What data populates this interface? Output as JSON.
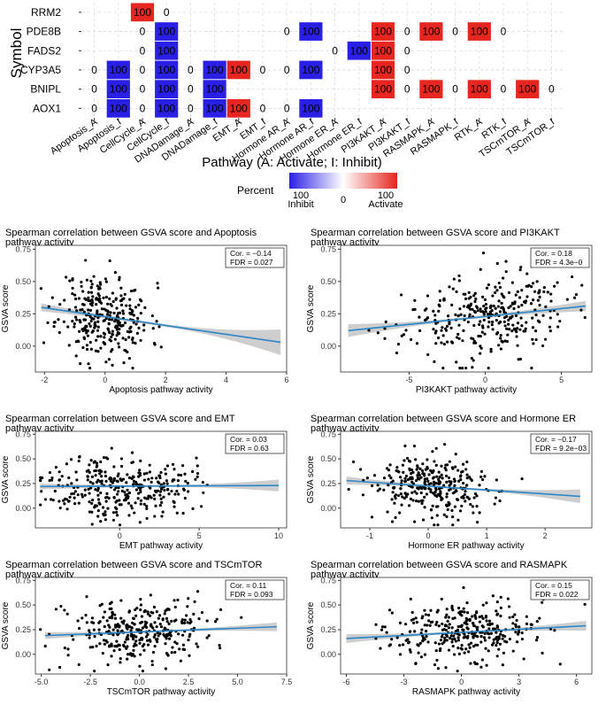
{
  "heatmap": {
    "y_title": "Symbol",
    "x_title": "Pathway (A: Activate; I: Inhibit)",
    "rows": [
      "RRM2",
      "PDE8B",
      "FADS2",
      "CYP3A5",
      "BNIPL",
      "AOX1"
    ],
    "columns": [
      "Apoptosis_A",
      "Apoptosis_I",
      "CellCycle_A",
      "CellCycle_I",
      "DNADamage_A",
      "DNADamage_I",
      "EMT_A",
      "EMT_I",
      "Hormone AR_A",
      "Hormone AR_I",
      "Hormone ER_A",
      "Hormone ER_I",
      "PI3KAKT_A",
      "PI3KAKT_I",
      "RASMAPK_A",
      "RASMAPK_I",
      "RTK_A",
      "RTK_I",
      "TSCmTOR_A",
      "TSCmTOR_I"
    ],
    "values": [
      [
        null,
        null,
        null,
        null,
        null,
        null,
        null,
        null,
        null,
        null,
        null,
        null,
        null,
        null,
        null,
        null,
        null,
        null,
        null,
        null
      ],
      [
        null,
        null,
        null,
        null,
        null,
        null,
        null,
        null,
        null,
        null,
        null,
        null,
        null,
        null,
        null,
        null,
        null,
        null,
        null,
        null
      ],
      [
        null,
        null,
        null,
        null,
        null,
        null,
        null,
        null,
        null,
        null,
        null,
        null,
        null,
        null,
        null,
        null,
        null,
        null,
        null,
        null
      ],
      [
        null,
        null,
        null,
        null,
        null,
        null,
        null,
        null,
        null,
        null,
        null,
        null,
        null,
        null,
        null,
        null,
        null,
        null,
        null,
        null
      ],
      [
        null,
        null,
        null,
        null,
        null,
        null,
        null,
        null,
        null,
        null,
        null,
        null,
        null,
        null,
        null,
        null,
        null,
        null,
        null,
        null
      ],
      [
        null,
        null,
        null,
        null,
        null,
        null,
        null,
        null,
        null,
        null,
        null,
        null,
        null,
        null,
        null,
        null,
        null,
        null,
        null,
        null
      ]
    ],
    "cells": [
      [
        null,
        null,
        "100",
        "0",
        null,
        null,
        null,
        null,
        null,
        null,
        null,
        null,
        null,
        null,
        null,
        null,
        null,
        null,
        null,
        null
      ],
      [
        null,
        null,
        "0",
        "100",
        null,
        null,
        null,
        null,
        "0",
        "100",
        null,
        null,
        "100",
        "0",
        "100",
        "0",
        "100",
        "0",
        null,
        null
      ],
      [
        null,
        null,
        "0",
        "100",
        null,
        null,
        null,
        null,
        null,
        null,
        "0",
        "100",
        "100",
        "0",
        null,
        null,
        null,
        null,
        null,
        null
      ],
      [
        "0",
        "100",
        "0",
        "100",
        "0",
        "100",
        "100",
        "0",
        "0",
        "100",
        null,
        null,
        "100",
        "0",
        null,
        null,
        null,
        null,
        null,
        null
      ],
      [
        "0",
        "100",
        "0",
        "100",
        "0",
        "100",
        null,
        null,
        null,
        null,
        null,
        null,
        "100",
        "0",
        "100",
        "0",
        "100",
        "0",
        "100",
        "0"
      ],
      [
        "0",
        "100",
        "0",
        "100",
        "0",
        "100",
        "100",
        "0",
        "0",
        "100",
        null,
        null,
        null,
        null,
        null,
        null,
        null,
        null,
        null,
        null
      ]
    ],
    "legend": {
      "title": "Percent",
      "min_label": "100",
      "min_sub": "Inhibit",
      "mid_label": "0",
      "max_label": "100",
      "max_sub": "Activate"
    },
    "colors": {
      "inhibit": "#2a1fe6",
      "neutral": "#ffffff",
      "activate": "#e6261f"
    }
  },
  "panels": [
    {
      "title_line1": "Spearman correlation between GSVA score and Apoptosis",
      "title_line2": "pathway activity",
      "xlabel": "Apoptosis pathway activity",
      "ylabel": "GSVA score",
      "cor_label": "Cor. = −0.14",
      "fdr_label": "FDR = 0.027",
      "xlim": [
        -2.3,
        6.0
      ],
      "ylim": [
        -0.2,
        0.78
      ],
      "xticks": [
        -2,
        0,
        2,
        4,
        6
      ],
      "yticks": [
        0.0,
        0.25,
        0.5,
        0.75
      ],
      "fit": [
        [
          -2.1,
          0.3
        ],
        [
          5.8,
          0.03
        ]
      ],
      "band": [
        0.03,
        0.01,
        0.1
      ],
      "point_seed": 11,
      "point_n": 300,
      "point_xmean": 0.0,
      "point_xsd": 0.75,
      "point_slope": -0.035,
      "point_intercept": 0.23
    },
    {
      "title_line1": "Spearman correlation between GSVA score and PI3KAKT",
      "title_line2": "pathway activity",
      "xlabel": "PI3KAKT pathway activity",
      "ylabel": "GSVA score",
      "cor_label": "Cor. = 0.18",
      "fdr_label": "FDR = 4.3e−0",
      "xlim": [
        -9.5,
        7.0
      ],
      "ylim": [
        -0.2,
        0.78
      ],
      "xticks": [
        -5,
        0,
        5
      ],
      "yticks": [
        0.0,
        0.25,
        0.5,
        0.75
      ],
      "fit": [
        [
          -9.0,
          0.12
        ],
        [
          6.6,
          0.31
        ]
      ],
      "band": [
        0.05,
        0.01,
        0.04
      ],
      "point_seed": 23,
      "point_n": 320,
      "point_xmean": 0.0,
      "point_xsd": 2.6,
      "point_slope": 0.012,
      "point_intercept": 0.23
    },
    {
      "title_line1": "Spearman correlation between GSVA score and EMT",
      "title_line2": "pathway activity",
      "xlabel": "EMT pathway activity",
      "ylabel": "GSVA score",
      "cor_label": "Cor. = 0.03",
      "fdr_label": "FDR = 0.63",
      "xlim": [
        -5.3,
        10.5
      ],
      "ylim": [
        -0.2,
        0.78
      ],
      "xticks": [
        0,
        5,
        10
      ],
      "yticks": [
        0.0,
        0.25,
        0.5,
        0.75
      ],
      "fit": [
        [
          -5.0,
          0.22
        ],
        [
          10.0,
          0.23
        ]
      ],
      "band": [
        0.03,
        0.01,
        0.06
      ],
      "point_seed": 37,
      "point_n": 320,
      "point_xmean": 0.0,
      "point_xsd": 2.3,
      "point_slope": 0.001,
      "point_intercept": 0.22
    },
    {
      "title_line1": "Spearman correlation between GSVA score and Hormone ER",
      "title_line2": "pathway activity",
      "xlabel": "Hormone ER pathway activity",
      "ylabel": "GSVA score",
      "cor_label": "Cor. = −0.17",
      "fdr_label": "FDR = 9.2e−03",
      "xlim": [
        -1.5,
        2.8
      ],
      "ylim": [
        -0.2,
        0.78
      ],
      "xticks": [
        -1,
        0,
        1,
        2
      ],
      "yticks": [
        0.0,
        0.25,
        0.5,
        0.75
      ],
      "fit": [
        [
          -1.4,
          0.28
        ],
        [
          2.6,
          0.12
        ]
      ],
      "band": [
        0.04,
        0.01,
        0.07
      ],
      "point_seed": 53,
      "point_n": 300,
      "point_xmean": 0.1,
      "point_xsd": 0.55,
      "point_slope": -0.04,
      "point_intercept": 0.22
    },
    {
      "title_line1": "Spearman correlation between GSVA score and TSCmTOR",
      "title_line2": "pathway activity",
      "xlabel": "TSCmTOR pathway activity",
      "ylabel": "GSVA score",
      "cor_label": "Cor. = 0.11",
      "fdr_label": "FDR = 0.093",
      "xlim": [
        -5.3,
        7.5
      ],
      "ylim": [
        -0.2,
        0.78
      ],
      "xticks": [
        -5.0,
        -2.5,
        0.0,
        2.5,
        5.0,
        7.5
      ],
      "yticks": [
        0.0,
        0.25,
        0.5,
        0.75
      ],
      "fit": [
        [
          -4.8,
          0.19
        ],
        [
          7.0,
          0.28
        ]
      ],
      "band": [
        0.035,
        0.01,
        0.045
      ],
      "point_seed": 71,
      "point_n": 320,
      "point_xmean": 0.0,
      "point_xsd": 1.9,
      "point_slope": 0.008,
      "point_intercept": 0.23
    },
    {
      "title_line1": "Spearman correlation between GSVA score and RASMAPK",
      "title_line2": "pathway activity",
      "xlabel": "RASMAPK pathway activity",
      "ylabel": "GSVA score",
      "cor_label": "Cor. = 0.15",
      "fdr_label": "FDR = 0.022",
      "xlim": [
        -6.3,
        6.8
      ],
      "ylim": [
        -0.2,
        0.78
      ],
      "xticks": [
        -6,
        -3,
        0,
        3,
        6
      ],
      "yticks": [
        0.0,
        0.25,
        0.5,
        0.75
      ],
      "fit": [
        [
          -6.0,
          0.16
        ],
        [
          6.5,
          0.29
        ]
      ],
      "band": [
        0.045,
        0.01,
        0.05
      ],
      "point_seed": 97,
      "point_n": 320,
      "point_xmean": 0.0,
      "point_xsd": 2.1,
      "point_slope": 0.01,
      "point_intercept": 0.23
    }
  ],
  "chart_data": [
    {
      "type": "heatmap",
      "title": "",
      "xlabel": "Pathway (A: Activate; I: Inhibit)",
      "ylabel": "Symbol",
      "rows": [
        "RRM2",
        "PDE8B",
        "FADS2",
        "CYP3A5",
        "BNIPL",
        "AOX1"
      ],
      "columns": [
        "Apoptosis_A",
        "Apoptosis_I",
        "CellCycle_A",
        "CellCycle_I",
        "DNADamage_A",
        "DNADamage_I",
        "EMT_A",
        "EMT_I",
        "Hormone AR_A",
        "Hormone AR_I",
        "Hormone ER_A",
        "Hormone ER_I",
        "PI3KAKT_A",
        "PI3KAKT_I",
        "RASMAPK_A",
        "RASMAPK_I",
        "RTK_A",
        "RTK_I",
        "TSCmTOR_A",
        "TSCmTOR_I"
      ],
      "legend": "Percent: 100 Inhibit (blue) to 0 to 100 Activate (red)"
    },
    {
      "type": "scatter",
      "title": "Spearman correlation between GSVA score and Apoptosis pathway activity",
      "xlabel": "Apoptosis pathway activity",
      "ylabel": "GSVA score",
      "cor": -0.14,
      "fdr": "0.027",
      "xlim": [
        -2.3,
        6.0
      ],
      "ylim": [
        -0.2,
        0.78
      ]
    },
    {
      "type": "scatter",
      "title": "Spearman correlation between GSVA score and PI3KAKT pathway activity",
      "xlabel": "PI3KAKT pathway activity",
      "ylabel": "GSVA score",
      "cor": 0.18,
      "fdr": "4.3e-0",
      "xlim": [
        -9.5,
        7.0
      ],
      "ylim": [
        -0.2,
        0.78
      ]
    },
    {
      "type": "scatter",
      "title": "Spearman correlation between GSVA score and EMT pathway activity",
      "xlabel": "EMT pathway activity",
      "ylabel": "GSVA score",
      "cor": 0.03,
      "fdr": "0.63",
      "xlim": [
        -5.3,
        10.5
      ],
      "ylim": [
        -0.2,
        0.78
      ]
    },
    {
      "type": "scatter",
      "title": "Spearman correlation between GSVA score and Hormone ER pathway activity",
      "xlabel": "Hormone ER pathway activity",
      "ylabel": "GSVA score",
      "cor": -0.17,
      "fdr": "9.2e-03",
      "xlim": [
        -1.5,
        2.8
      ],
      "ylim": [
        -0.2,
        0.78
      ]
    },
    {
      "type": "scatter",
      "title": "Spearman correlation between GSVA score and TSCmTOR pathway activity",
      "xlabel": "TSCmTOR pathway activity",
      "ylabel": "GSVA score",
      "cor": 0.11,
      "fdr": "0.093",
      "xlim": [
        -5.3,
        7.5
      ],
      "ylim": [
        -0.2,
        0.78
      ]
    },
    {
      "type": "scatter",
      "title": "Spearman correlation between GSVA score and RASMAPK pathway activity",
      "xlabel": "RASMAPK pathway activity",
      "ylabel": "GSVA score",
      "cor": 0.15,
      "fdr": "0.022",
      "xlim": [
        -6.3,
        6.8
      ],
      "ylim": [
        -0.2,
        0.78
      ]
    }
  ]
}
